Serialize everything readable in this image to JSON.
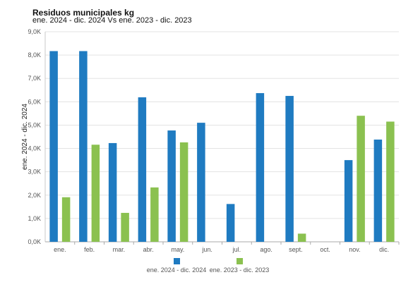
{
  "chart_data": {
    "type": "bar",
    "title": "Residuos municipales kg",
    "subtitle": "ene. 2024 - dic. 2024 Vs ene. 2023 - dic. 2023",
    "ylabel": "ene. 2024 - dic. 2024",
    "xlabel": "",
    "ylim": [
      0,
      9000
    ],
    "yticks": [
      0,
      1000,
      2000,
      3000,
      4000,
      5000,
      6000,
      7000,
      8000,
      9000
    ],
    "ytick_labels": [
      "0,0K",
      "1,0K",
      "2,0K",
      "3,0K",
      "4,0K",
      "5,0K",
      "6,0K",
      "7,0K",
      "8,0K",
      "9,0K"
    ],
    "grid": true,
    "legend_position": "bottom",
    "categories": [
      "ene.",
      "feb.",
      "mar.",
      "abr.",
      "may.",
      "jun.",
      "jul.",
      "ago.",
      "sept.",
      "oct.",
      "nov.",
      "dic."
    ],
    "series": [
      {
        "name": "ene. 2024 - dic. 2024",
        "color": "#1f7bc1",
        "values": [
          8170,
          8170,
          4230,
          6190,
          4770,
          5100,
          1620,
          6370,
          6250,
          0,
          3500,
          4380
        ]
      },
      {
        "name": "ene. 2023 - dic. 2023",
        "color": "#8bc150",
        "values": [
          1910,
          4160,
          1240,
          2330,
          4260,
          0,
          0,
          0,
          350,
          0,
          5400,
          5150
        ]
      }
    ]
  }
}
